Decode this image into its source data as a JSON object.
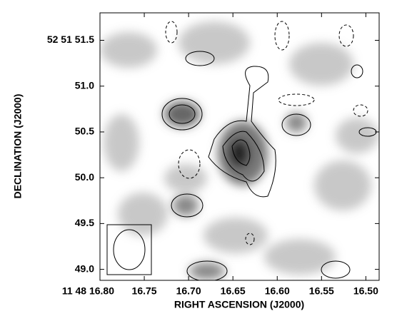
{
  "chart_data": {
    "type": "image",
    "xlabel": "RIGHT ASCENSION (J2000)",
    "ylabel": "DECLINATION (J2000)",
    "xlim": [
      16.8,
      16.485
    ],
    "ylim": [
      48.88,
      51.8
    ],
    "xticks": [
      {
        "value": 16.8,
        "label": "11 48 16.80"
      },
      16.75,
      {
        "value": 16.7,
        "label": "16.70"
      },
      16.65,
      {
        "value": 16.6,
        "label": "16.60"
      },
      16.55,
      {
        "value": 16.5,
        "label": "16.50"
      }
    ],
    "yticks": [
      {
        "value": 49,
        "label": "49.0"
      },
      49.5,
      {
        "value": 50,
        "label": "50.0"
      },
      50.5,
      {
        "value": 51,
        "label": "51.0"
      },
      {
        "value": 51.5,
        "label": "52 51 51.5"
      }
    ]
  }
}
